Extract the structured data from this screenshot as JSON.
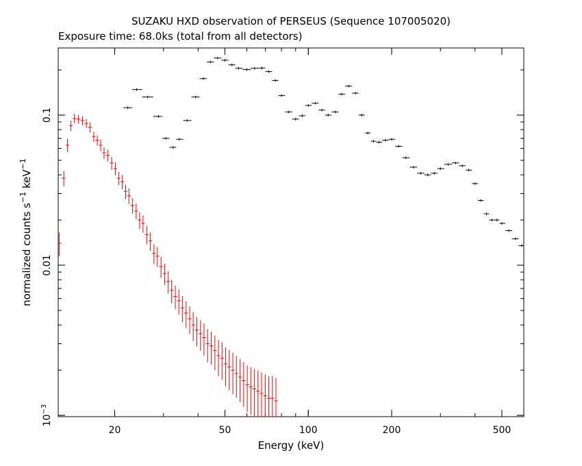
{
  "chart_data": {
    "type": "scatter",
    "title": "SUZAKU HXD observation of PERSEUS (Sequence 107005020)",
    "subtitle": "Exposure time: 68.0ks (total from all detectors)",
    "xlabel": "Energy (keV)",
    "ylabel_text": "normalized counts s",
    "ylabel_sup1": "−1",
    "ylabel_mid": " keV",
    "ylabel_sup2": "−1",
    "x_scale": "log",
    "y_scale": "log",
    "xlim": [
      12.5,
      600
    ],
    "ylim": [
      0.00098,
      0.28
    ],
    "x_ticks": [
      {
        "value": 20,
        "label": "20"
      },
      {
        "value": 50,
        "label": "50"
      },
      {
        "value": 100,
        "label": "100"
      },
      {
        "value": 200,
        "label": "200"
      },
      {
        "value": 500,
        "label": "500"
      }
    ],
    "y_ticks": [
      {
        "value": 0.001,
        "label": "10",
        "sup": "−3"
      },
      {
        "value": 0.01,
        "label": "0.01",
        "sup": ""
      },
      {
        "value": 0.1,
        "label": "0.1",
        "sup": ""
      }
    ],
    "colors": {
      "axis": "#000000",
      "pin": "#ff0000",
      "gso": "#000000"
    },
    "series": [
      {
        "color": "#ff0000",
        "points": [
          [
            12.6,
            0.014,
            0.18
          ],
          [
            13.1,
            0.038,
            0.12
          ],
          [
            13.5,
            0.063,
            0.1
          ],
          [
            13.9,
            0.085,
            0.08
          ],
          [
            14.3,
            0.095,
            0.07
          ],
          [
            14.8,
            0.094,
            0.07
          ],
          [
            15.3,
            0.092,
            0.07
          ],
          [
            15.8,
            0.088,
            0.07
          ],
          [
            16.3,
            0.083,
            0.08
          ],
          [
            16.8,
            0.072,
            0.08
          ],
          [
            17.3,
            0.068,
            0.08
          ],
          [
            17.8,
            0.063,
            0.09
          ],
          [
            18.3,
            0.056,
            0.09
          ],
          [
            18.9,
            0.054,
            0.09
          ],
          [
            19.5,
            0.048,
            0.1
          ],
          [
            20.1,
            0.044,
            0.1
          ],
          [
            20.7,
            0.038,
            0.1
          ],
          [
            21.3,
            0.036,
            0.11
          ],
          [
            21.9,
            0.031,
            0.11
          ],
          [
            22.5,
            0.029,
            0.12
          ],
          [
            23.2,
            0.025,
            0.12
          ],
          [
            23.9,
            0.023,
            0.12
          ],
          [
            24.6,
            0.02,
            0.13
          ],
          [
            25.3,
            0.019,
            0.13
          ],
          [
            26.1,
            0.016,
            0.14
          ],
          [
            26.9,
            0.0145,
            0.14
          ],
          [
            27.7,
            0.012,
            0.15
          ],
          [
            28.5,
            0.0115,
            0.15
          ],
          [
            29.4,
            0.0098,
            0.16
          ],
          [
            30.3,
            0.0088,
            0.16
          ],
          [
            31.2,
            0.0078,
            0.17
          ],
          [
            32.1,
            0.0068,
            0.18
          ],
          [
            33.1,
            0.0062,
            0.18
          ],
          [
            34.1,
            0.0058,
            0.19
          ],
          [
            35.1,
            0.0052,
            0.2
          ],
          [
            36.2,
            0.0048,
            0.2
          ],
          [
            37.3,
            0.0044,
            0.21
          ],
          [
            38.4,
            0.004,
            0.22
          ],
          [
            39.6,
            0.0037,
            0.22
          ],
          [
            40.8,
            0.0035,
            0.23
          ],
          [
            42.0,
            0.0033,
            0.24
          ],
          [
            43.3,
            0.003,
            0.25
          ],
          [
            44.6,
            0.0029,
            0.25
          ],
          [
            46.0,
            0.0027,
            0.26
          ],
          [
            47.4,
            0.0025,
            0.27
          ],
          [
            48.8,
            0.0024,
            0.28
          ],
          [
            50.3,
            0.0022,
            0.29
          ],
          [
            51.8,
            0.0021,
            0.3
          ],
          [
            53.4,
            0.002,
            0.31
          ],
          [
            55.0,
            0.0019,
            0.31
          ],
          [
            56.7,
            0.0018,
            0.32
          ],
          [
            58.4,
            0.0017,
            0.33
          ],
          [
            60.2,
            0.0016,
            0.34
          ],
          [
            62.0,
            0.00155,
            0.35
          ],
          [
            63.9,
            0.0015,
            0.36
          ],
          [
            65.8,
            0.00145,
            0.37
          ],
          [
            67.8,
            0.0014,
            0.38
          ],
          [
            69.9,
            0.00135,
            0.39
          ],
          [
            72.0,
            0.0013,
            0.4
          ],
          [
            74.2,
            0.0013,
            0.41
          ],
          [
            76.4,
            0.00125,
            0.42
          ]
        ]
      },
      {
        "color": "#000000",
        "points": [
          [
            22.3,
            0.112
          ],
          [
            24.0,
            0.148
          ],
          [
            26.3,
            0.132
          ],
          [
            28.8,
            0.098
          ],
          [
            30.6,
            0.07
          ],
          [
            32.5,
            0.061
          ],
          [
            34.2,
            0.069
          ],
          [
            36.5,
            0.092
          ],
          [
            39.2,
            0.132
          ],
          [
            41.8,
            0.175
          ],
          [
            44.3,
            0.226
          ],
          [
            47.0,
            0.24
          ],
          [
            50.0,
            0.232
          ],
          [
            53.0,
            0.216
          ],
          [
            56.0,
            0.205
          ],
          [
            60.0,
            0.201
          ],
          [
            64.0,
            0.205
          ],
          [
            68.0,
            0.206
          ],
          [
            72.0,
            0.195
          ],
          [
            76.0,
            0.17
          ],
          [
            80.0,
            0.135
          ],
          [
            85.0,
            0.105
          ],
          [
            90.0,
            0.094
          ],
          [
            95.0,
            0.099
          ],
          [
            100.0,
            0.116
          ],
          [
            106.0,
            0.12
          ],
          [
            112.0,
            0.108
          ],
          [
            118.0,
            0.1
          ],
          [
            125.0,
            0.105
          ],
          [
            132.0,
            0.138
          ],
          [
            140.0,
            0.156
          ],
          [
            148.0,
            0.14
          ],
          [
            156.0,
            0.1
          ],
          [
            164.0,
            0.076
          ],
          [
            172.0,
            0.067
          ],
          [
            180.0,
            0.066
          ],
          [
            190.0,
            0.068
          ],
          [
            200.0,
            0.069
          ],
          [
            212.0,
            0.062
          ],
          [
            225.0,
            0.052
          ],
          [
            240.0,
            0.045
          ],
          [
            255.0,
            0.041
          ],
          [
            270.0,
            0.04
          ],
          [
            285.0,
            0.041
          ],
          [
            300.0,
            0.044
          ],
          [
            320.0,
            0.047
          ],
          [
            340.0,
            0.048
          ],
          [
            360.0,
            0.046
          ],
          [
            380.0,
            0.043
          ],
          [
            400.0,
            0.035
          ],
          [
            420.0,
            0.027
          ],
          [
            440.0,
            0.022
          ],
          [
            460.0,
            0.02
          ],
          [
            480.0,
            0.02
          ],
          [
            500.0,
            0.019
          ],
          [
            530.0,
            0.017
          ],
          [
            560.0,
            0.015
          ],
          [
            590.0,
            0.0135
          ]
        ]
      }
    ]
  }
}
